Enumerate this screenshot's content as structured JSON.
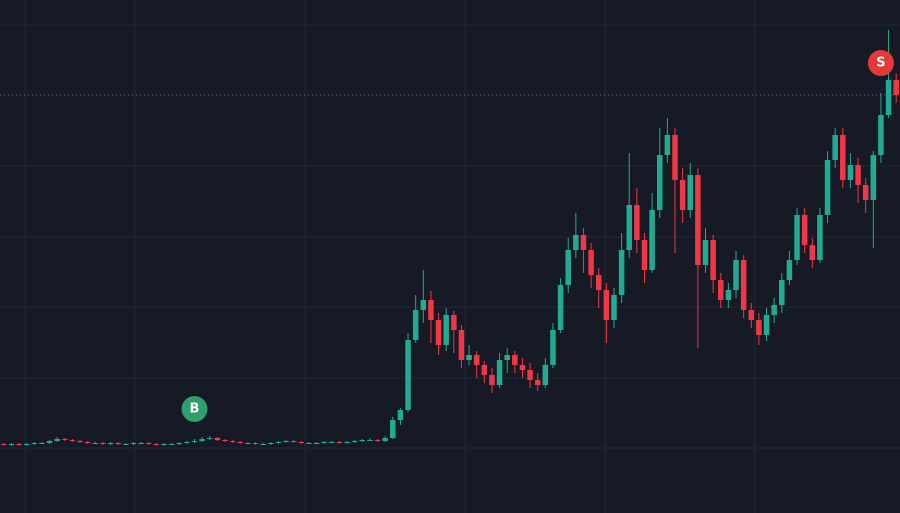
{
  "chart_data": {
    "type": "candlestick",
    "ylim": [
      0,
      513
    ],
    "up_color": "#22ab94",
    "down_color": "#f23645",
    "price_line_color": "#6b7080",
    "open": [
      69,
      68,
      69,
      68,
      69,
      70,
      70,
      72,
      74,
      73,
      72,
      71,
      70,
      70,
      69,
      70,
      69,
      69,
      70,
      70,
      69,
      68,
      69,
      69,
      70,
      71,
      72,
      74,
      75,
      73,
      72,
      71,
      70,
      70,
      69,
      69,
      70,
      71,
      72,
      71,
      70,
      70,
      70,
      71,
      71,
      70,
      71,
      72,
      73,
      73,
      72,
      75,
      93,
      103,
      173,
      203,
      213,
      193,
      168,
      198,
      183,
      153,
      158,
      148,
      138,
      128,
      153,
      158,
      148,
      143,
      133,
      128,
      148,
      183,
      228,
      263,
      278,
      263,
      238,
      223,
      193,
      218,
      263,
      308,
      273,
      243,
      303,
      358,
      378,
      333,
      303,
      338,
      248,
      273,
      233,
      213,
      223,
      253,
      203,
      193,
      178,
      198,
      208,
      233,
      253,
      298,
      268,
      253,
      298,
      353,
      378,
      333,
      348,
      328,
      313,
      358,
      398,
      433
    ],
    "high": [
      70,
      70,
      70,
      70,
      71,
      71,
      73,
      76,
      75,
      74,
      73,
      72,
      71,
      71,
      71,
      71,
      70,
      71,
      71,
      71,
      70,
      70,
      70,
      71,
      72,
      74,
      76,
      77,
      76,
      74,
      73,
      72,
      71,
      71,
      70,
      71,
      72,
      73,
      73,
      72,
      71,
      71,
      72,
      72,
      72,
      72,
      73,
      74,
      75,
      74,
      77,
      96,
      105,
      180,
      218,
      243,
      222,
      200,
      205,
      202,
      188,
      168,
      162,
      152,
      145,
      160,
      165,
      162,
      155,
      150,
      140,
      155,
      190,
      235,
      275,
      300,
      285,
      270,
      245,
      230,
      225,
      280,
      360,
      325,
      280,
      320,
      385,
      395,
      385,
      345,
      350,
      345,
      285,
      278,
      240,
      230,
      262,
      258,
      210,
      200,
      205,
      215,
      240,
      262,
      305,
      305,
      275,
      305,
      362,
      385,
      385,
      360,
      355,
      335,
      362,
      420,
      483,
      440
    ],
    "low": [
      67,
      67,
      67,
      67,
      68,
      69,
      69,
      71,
      72,
      71,
      70,
      69,
      69,
      68,
      68,
      68,
      68,
      68,
      69,
      68,
      67,
      67,
      68,
      68,
      69,
      70,
      71,
      73,
      72,
      71,
      70,
      69,
      69,
      68,
      68,
      68,
      69,
      70,
      70,
      69,
      69,
      69,
      69,
      70,
      69,
      69,
      70,
      71,
      72,
      71,
      71,
      74,
      88,
      101,
      170,
      190,
      170,
      158,
      162,
      160,
      145,
      148,
      135,
      130,
      120,
      125,
      140,
      140,
      135,
      125,
      122,
      125,
      145,
      180,
      220,
      255,
      240,
      225,
      205,
      170,
      185,
      210,
      255,
      260,
      230,
      240,
      295,
      350,
      260,
      290,
      295,
      165,
      240,
      220,
      205,
      205,
      215,
      195,
      185,
      168,
      172,
      190,
      200,
      228,
      248,
      260,
      245,
      250,
      290,
      345,
      325,
      325,
      310,
      300,
      265,
      350,
      395,
      410
    ],
    "close": [
      68,
      69,
      68,
      69,
      70,
      70,
      72,
      74,
      73,
      72,
      71,
      70,
      70,
      69,
      70,
      69,
      69,
      70,
      70,
      69,
      68,
      69,
      69,
      70,
      71,
      72,
      74,
      75,
      73,
      72,
      71,
      70,
      70,
      69,
      69,
      70,
      71,
      72,
      71,
      70,
      70,
      70,
      71,
      71,
      70,
      71,
      72,
      73,
      73,
      72,
      75,
      93,
      103,
      173,
      203,
      213,
      193,
      168,
      198,
      183,
      153,
      158,
      148,
      138,
      128,
      153,
      158,
      148,
      143,
      133,
      128,
      148,
      183,
      228,
      263,
      278,
      263,
      238,
      223,
      193,
      218,
      263,
      308,
      273,
      243,
      303,
      358,
      378,
      333,
      303,
      338,
      248,
      273,
      233,
      213,
      223,
      253,
      203,
      193,
      178,
      198,
      208,
      233,
      253,
      298,
      268,
      253,
      298,
      353,
      378,
      333,
      348,
      328,
      313,
      358,
      398,
      433,
      418
    ],
    "signals": [
      {
        "label": "B",
        "at": 25,
        "color": "#2e9e6b"
      },
      {
        "label": "S",
        "at": 115,
        "color": "#e53935"
      }
    ]
  }
}
